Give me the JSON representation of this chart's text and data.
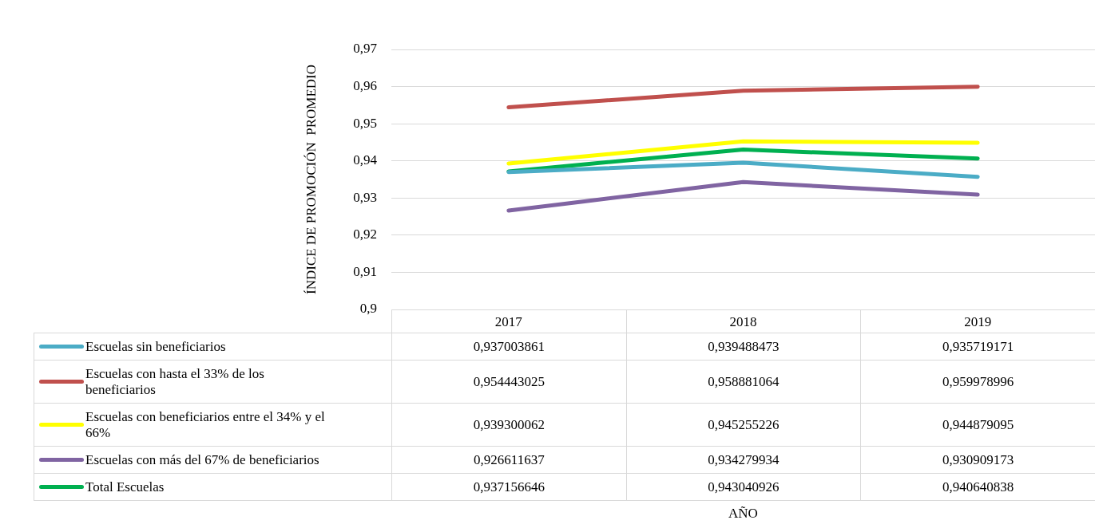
{
  "chart_data": {
    "type": "line",
    "ylabel": "ÍNDICE DE PROMOCIÓN  PROMEDIO",
    "annotations": [
      "AÑO"
    ],
    "categories": [
      "2017",
      "2018",
      "2019"
    ],
    "ylim": [
      0.9,
      0.97
    ],
    "yticks": [
      {
        "value": 0.9,
        "label": "0,9"
      },
      {
        "value": 0.91,
        "label": "0,91"
      },
      {
        "value": 0.92,
        "label": "0,92"
      },
      {
        "value": 0.93,
        "label": "0,93"
      },
      {
        "value": 0.94,
        "label": "0,94"
      },
      {
        "value": 0.95,
        "label": "0,95"
      },
      {
        "value": 0.96,
        "label": "0,96"
      },
      {
        "value": 0.97,
        "label": "0,97"
      }
    ],
    "grid": "y",
    "legend": "bottom",
    "series": [
      {
        "name": "Escuelas sin beneficiarios",
        "color": "#4bacc6",
        "values": [
          0.937003861,
          0.939488473,
          0.935719171
        ],
        "value_labels": [
          "0,937003861",
          "0,939488473",
          "0,935719171"
        ]
      },
      {
        "name": "Escuelas con hasta el 33% de los beneficiarios",
        "color": "#c0504d",
        "values": [
          0.954443025,
          0.958881064,
          0.959978996
        ],
        "value_labels": [
          "0,954443025",
          "0,958881064",
          "0,959978996"
        ]
      },
      {
        "name": "Escuelas con beneficiarios entre el 34% y el 66%",
        "color": "#ffff00",
        "values": [
          0.939300062,
          0.945255226,
          0.944879095
        ],
        "value_labels": [
          "0,939300062",
          "0,945255226",
          "0,944879095"
        ]
      },
      {
        "name": "Escuelas con más del 67% de beneficiarios",
        "color": "#8064a2",
        "values": [
          0.926611637,
          0.934279934,
          0.930909173
        ],
        "value_labels": [
          "0,926611637",
          "0,934279934",
          "0,930909173"
        ]
      },
      {
        "name": "Total Escuelas",
        "color": "#00b050",
        "values": [
          0.937156646,
          0.943040926,
          0.940640838
        ],
        "value_labels": [
          "0,937156646",
          "0,943040926",
          "0,940640838"
        ]
      }
    ]
  }
}
